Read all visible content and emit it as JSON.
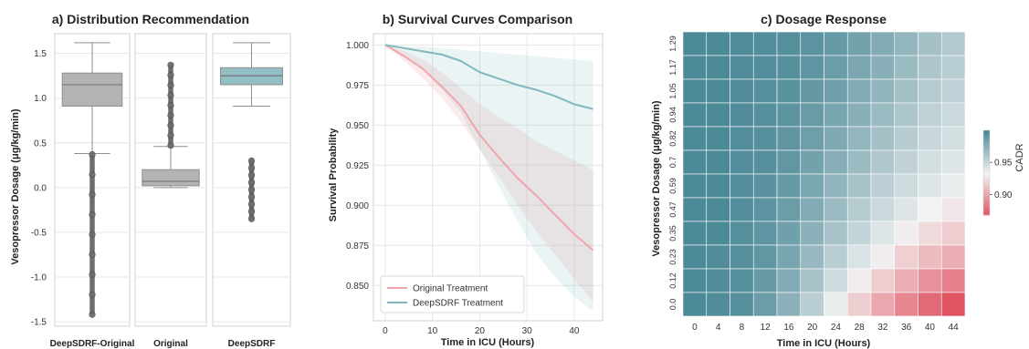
{
  "chart_data": [
    {
      "type": "box",
      "title": "a) Distribution Recommendation",
      "ylabel": "Vesopressor Dosage (μg/kg/min)",
      "ylim": [
        -1.55,
        1.72
      ],
      "yticks": [
        "-1.5",
        "-1.0",
        "-0.5",
        "0.0",
        "0.5",
        "1.0",
        "1.5"
      ],
      "yticks_values": [
        -1.5,
        -1.0,
        -0.5,
        0.0,
        0.5,
        1.0,
        1.5
      ],
      "panels": [
        {
          "label": "DeepSDRF-Original",
          "color": "#b3b3b3",
          "q1": 0.91,
          "median": 1.15,
          "q3": 1.28,
          "whisker_low": 0.38,
          "whisker_high": 1.62,
          "outliers_low": -1.42,
          "outliers_high": 0.37
        },
        {
          "label": "Original",
          "color": "#b3b3b3",
          "q1": 0.02,
          "median": 0.07,
          "q3": 0.2,
          "whisker_low": 0.0,
          "whisker_high": 0.46,
          "outliers_low": 0.47,
          "outliers_high": 1.37
        },
        {
          "label": "DeepSDRF",
          "color": "#92bfc4",
          "q1": 1.15,
          "median": 1.25,
          "q3": 1.34,
          "whisker_low": 0.91,
          "whisker_high": 1.62,
          "outliers_low": -0.35,
          "outliers_high": 0.3
        }
      ]
    },
    {
      "type": "line",
      "title": "b) Survival Curves Comparison",
      "xlabel": "Time in ICU (Hours)",
      "ylabel": "Survival Probability",
      "xlim": [
        -2.5,
        46
      ],
      "ylim": [
        0.828,
        1.007
      ],
      "xticks": [
        "0",
        "10",
        "20",
        "30",
        "40"
      ],
      "xticks_values": [
        0,
        10,
        20,
        30,
        40
      ],
      "yticks": [
        "0.850",
        "0.875",
        "0.900",
        "0.925",
        "0.950",
        "0.975",
        "1.000"
      ],
      "yticks_values": [
        0.85,
        0.875,
        0.9,
        0.925,
        0.95,
        0.975,
        1.0
      ],
      "x": [
        0,
        4,
        8,
        12,
        16,
        20,
        24,
        28,
        32,
        36,
        40,
        44
      ],
      "series": [
        {
          "name": "Original Treatment",
          "color": "#f0a5ab",
          "values": [
            1.0,
            0.993,
            0.985,
            0.974,
            0.962,
            0.944,
            0.93,
            0.917,
            0.906,
            0.894,
            0.882,
            0.872
          ],
          "lower": [
            1.0,
            0.99,
            0.979,
            0.967,
            0.952,
            0.935,
            0.918,
            0.9,
            0.884,
            0.869,
            0.854,
            0.84
          ],
          "upper": [
            1.0,
            0.996,
            0.991,
            0.983,
            0.973,
            0.963,
            0.955,
            0.948,
            0.94,
            0.934,
            0.928,
            0.922
          ]
        },
        {
          "name": "DeepSDRF Treatment",
          "color": "#7fb8bd",
          "values": [
            1.0,
            0.998,
            0.996,
            0.994,
            0.99,
            0.983,
            0.979,
            0.975,
            0.972,
            0.968,
            0.963,
            0.96
          ],
          "lower": [
            1.0,
            0.993,
            0.985,
            0.972,
            0.958,
            0.935,
            0.912,
            0.89,
            0.87,
            0.855,
            0.843,
            0.834
          ],
          "upper": [
            1.0,
            0.999,
            0.999,
            0.998,
            0.997,
            0.996,
            0.995,
            0.994,
            0.993,
            0.992,
            0.991,
            0.99
          ]
        }
      ],
      "legend": "lower-left"
    },
    {
      "type": "heatmap",
      "title": "c) Dosage Response",
      "xlabel": "Time in ICU (Hours)",
      "ylabel": "Vesopressor Dosage (μg/kg/min)",
      "x_labels": [
        "0",
        "4",
        "8",
        "12",
        "16",
        "20",
        "24",
        "28",
        "32",
        "36",
        "40",
        "44"
      ],
      "y_labels_top_to_bottom": [
        "1.29",
        "1.17",
        "1.05",
        "0.94",
        "0.82",
        "0.7",
        "0.59",
        "0.47",
        "0.35",
        "0.23",
        "0.12",
        "0.0"
      ],
      "values_top_to_bottom": [
        [
          1.0,
          1.0,
          0.999,
          0.998,
          0.997,
          0.994,
          0.99,
          0.985,
          0.979,
          0.972,
          0.965,
          0.96
        ],
        [
          1.0,
          1.0,
          0.999,
          0.998,
          0.996,
          0.993,
          0.988,
          0.982,
          0.976,
          0.969,
          0.962,
          0.957
        ],
        [
          1.0,
          1.0,
          0.999,
          0.997,
          0.995,
          0.991,
          0.986,
          0.979,
          0.973,
          0.966,
          0.959,
          0.954
        ],
        [
          1.0,
          1.0,
          0.999,
          0.997,
          0.994,
          0.989,
          0.983,
          0.976,
          0.969,
          0.962,
          0.955,
          0.95
        ],
        [
          1.0,
          1.0,
          0.998,
          0.996,
          0.993,
          0.987,
          0.98,
          0.972,
          0.965,
          0.958,
          0.951,
          0.946
        ],
        [
          1.0,
          1.0,
          0.998,
          0.996,
          0.992,
          0.985,
          0.977,
          0.969,
          0.961,
          0.954,
          0.947,
          0.942
        ],
        [
          1.0,
          1.0,
          0.998,
          0.995,
          0.99,
          0.982,
          0.973,
          0.964,
          0.956,
          0.949,
          0.942,
          0.937
        ],
        [
          1.0,
          1.0,
          0.998,
          0.994,
          0.988,
          0.979,
          0.969,
          0.959,
          0.95,
          0.942,
          0.934,
          0.929
        ],
        [
          1.0,
          1.0,
          0.997,
          0.993,
          0.986,
          0.975,
          0.964,
          0.953,
          0.942,
          0.932,
          0.924,
          0.918
        ],
        [
          1.0,
          0.999,
          0.997,
          0.992,
          0.983,
          0.97,
          0.957,
          0.944,
          0.932,
          0.92,
          0.911,
          0.905
        ],
        [
          1.0,
          0.999,
          0.996,
          0.99,
          0.979,
          0.964,
          0.948,
          0.932,
          0.918,
          0.905,
          0.894,
          0.886
        ],
        [
          1.0,
          0.999,
          0.996,
          0.988,
          0.975,
          0.957,
          0.938,
          0.919,
          0.903,
          0.889,
          0.877,
          0.868
        ]
      ],
      "colorbar_label": "CADR",
      "colorbar_ticks": [
        "0.95",
        "0.90"
      ],
      "colorbar_ticks_values": [
        0.95,
        0.9
      ],
      "vmin": 0.868,
      "vmax": 1.0,
      "color_low": "#e05462",
      "color_mid": "#f2f2f2",
      "color_high": "#4d8a98"
    }
  ]
}
